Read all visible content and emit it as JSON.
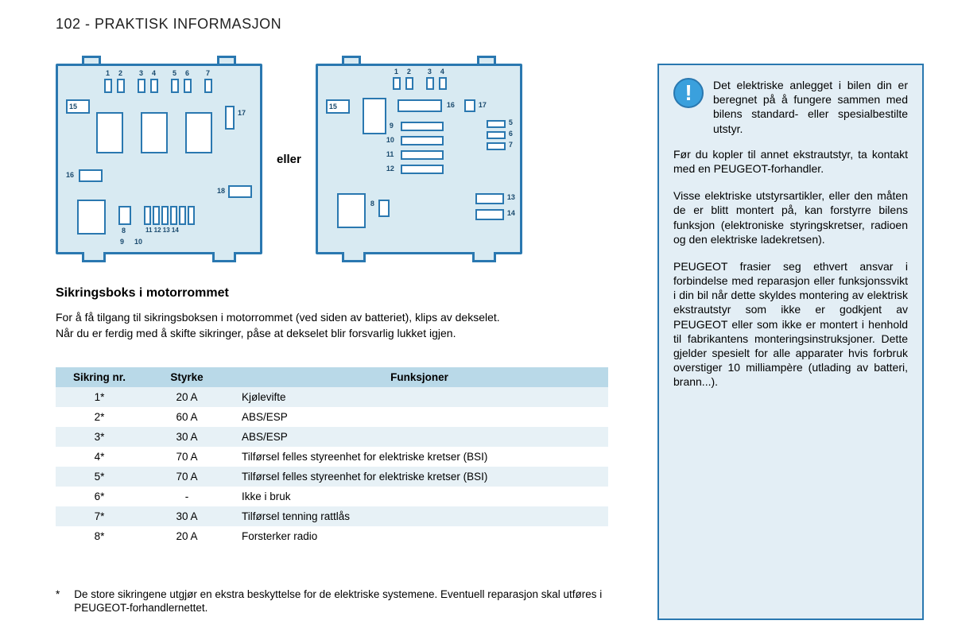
{
  "header": {
    "page_number": "102",
    "separator": " - ",
    "title": "PRAKTISK INFORMASJON"
  },
  "diagrams": {
    "or_label": "eller",
    "box_border_color": "#2a78b0",
    "box_fill_color": "#d8eaf2",
    "comp_fill_color": "#ffffff",
    "left": {
      "labels": [
        "1",
        "2",
        "3",
        "4",
        "5",
        "6",
        "7",
        "8",
        "9",
        "10",
        "11",
        "12",
        "13",
        "14",
        "15",
        "16",
        "17",
        "18"
      ]
    },
    "right": {
      "labels": [
        "1",
        "2",
        "3",
        "4",
        "5",
        "6",
        "7",
        "8",
        "9",
        "10",
        "11",
        "12",
        "13",
        "14",
        "15",
        "16",
        "17"
      ]
    }
  },
  "section": {
    "title": "Sikringsboks i motorrommet",
    "intro_p1": "For å få tilgang til sikringsboksen i motorrommet (ved siden av batteriet), klips av dekselet.",
    "intro_p2": "Når du er ferdig med å skifte sikringer, påse at dekselet blir forsvarlig lukket igjen."
  },
  "table": {
    "header_bg": "#b9d9e8",
    "row_odd_bg": "#e7f1f6",
    "row_even_bg": "#ffffff",
    "columns": [
      "Sikring nr.",
      "Styrke",
      "Funksjoner"
    ],
    "rows": [
      [
        "1*",
        "20 A",
        "Kjølevifte"
      ],
      [
        "2*",
        "60 A",
        "ABS/ESP"
      ],
      [
        "3*",
        "30 A",
        "ABS/ESP"
      ],
      [
        "4*",
        "70 A",
        "Tilførsel felles styreenhet for elektriske kretser (BSI)"
      ],
      [
        "5*",
        "70 A",
        "Tilførsel felles styreenhet for elektriske kretser (BSI)"
      ],
      [
        "6*",
        "-",
        "Ikke i bruk"
      ],
      [
        "7*",
        "30 A",
        "Tilførsel tenning rattlås"
      ],
      [
        "8*",
        "20 A",
        "Forsterker radio"
      ]
    ]
  },
  "footnote": {
    "marker": "*",
    "text": "De store sikringene utgjør en ekstra beskyttelse for de elektriske systemene. Eventuell reparasjon skal utføres i PEUGEOT-forhandlernettet."
  },
  "infobox": {
    "border_color": "#2a78b0",
    "bg_color": "#e3eef5",
    "icon_bg": "#3aa0dd",
    "icon_glyph": "!",
    "p1": "Det elektriske anlegget i bilen din er beregnet på å fungere sammen med bilens standard- eller spesialbestilte utstyr.",
    "p2": "Før du kopler til annet ekstrautstyr, ta kontakt med en PEUGEOT-forhandler.",
    "p3": "Visse elektriske utstyrsartikler, eller den måten de er blitt montert på, kan forstyrre bilens funksjon (elektroniske styringskretser, radioen og den elektriske ladekretsen).",
    "p4": "PEUGEOT frasier seg ethvert ansvar i forbindelse med reparasjon eller funksjonssvikt i din bil når dette skyldes montering av elektrisk ekstrautstyr som ikke er godkjent av PEUGEOT eller som ikke er montert i henhold til fabrikantens monteringsinstruksjoner. Dette gjelder spesielt for alle apparater hvis forbruk overstiger 10 milliampère (utlading av batteri, brann...)."
  }
}
